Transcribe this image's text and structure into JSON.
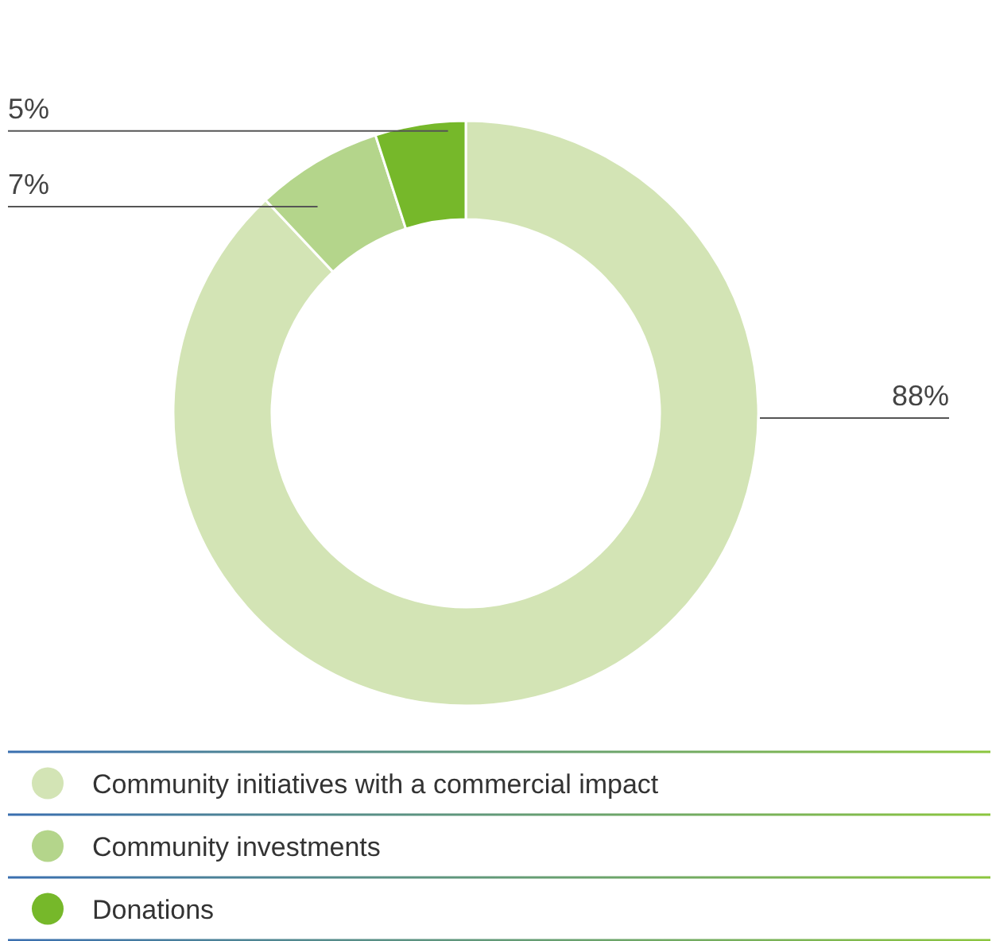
{
  "chart_data": {
    "type": "donut",
    "categories": [
      "Community initiatives with a commercial impact",
      "Community investments",
      "Donations"
    ],
    "values": [
      88,
      7,
      5
    ],
    "colors": [
      "#d3e4b5",
      "#b4d58b",
      "#76b82a"
    ],
    "value_labels": [
      "88%",
      "7%",
      "5%"
    ],
    "legend": "bottom"
  }
}
